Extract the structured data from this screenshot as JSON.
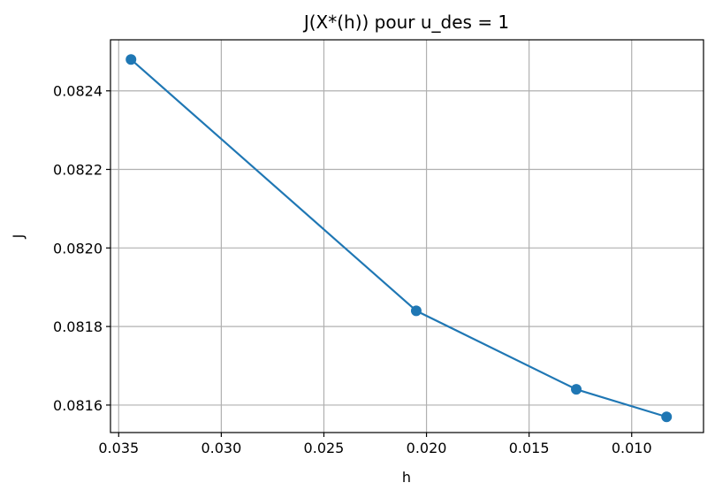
{
  "chart_data": {
    "type": "line",
    "title": "J(X*(h)) pour u_des = 1",
    "xlabel": "h",
    "ylabel": "J",
    "x_inverted": true,
    "xlim": [
      0.0354,
      0.0065
    ],
    "ylim": [
      0.08153,
      0.08253
    ],
    "grid": true,
    "marker": "circle",
    "color": "#1f77b4",
    "x_ticks": [
      0.035,
      0.03,
      0.025,
      0.02,
      0.015,
      0.01
    ],
    "x_tick_labels": [
      "0.035",
      "0.030",
      "0.025",
      "0.020",
      "0.015",
      "0.010"
    ],
    "y_ticks": [
      0.0816,
      0.0818,
      0.082,
      0.0822,
      0.0824
    ],
    "y_tick_labels": [
      "0.0816",
      "0.0818",
      "0.0820",
      "0.0822",
      "0.0824"
    ],
    "series": [
      {
        "x": [
          0.0344,
          0.0205,
          0.0127,
          0.0083
        ],
        "y": [
          0.08248,
          0.08184,
          0.08164,
          0.08157
        ]
      }
    ]
  }
}
